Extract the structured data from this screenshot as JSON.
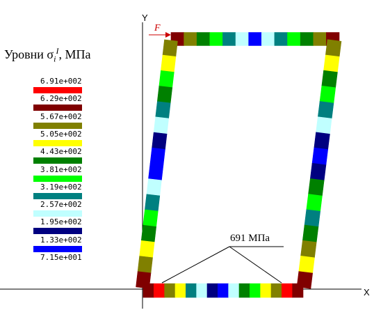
{
  "legend": {
    "title_prefix": "Уровни σ",
    "title_sub": "i",
    "title_sup": "I",
    "title_suffix": ", МПа",
    "levels": [
      {
        "label": "6.91e+002",
        "color": "#ff0000"
      },
      {
        "label": "6.29e+002",
        "color": "#800000"
      },
      {
        "label": "5.67e+002",
        "color": "#808000"
      },
      {
        "label": "5.05e+002",
        "color": "#ffff00"
      },
      {
        "label": "4.43e+002",
        "color": "#008000"
      },
      {
        "label": "3.81e+002",
        "color": "#00ff00"
      },
      {
        "label": "3.19e+002",
        "color": "#008080"
      },
      {
        "label": "2.57e+002",
        "color": "#c0ffff"
      },
      {
        "label": "1.95e+002",
        "color": "#000080"
      },
      {
        "label": "1.33e+002",
        "color": "#0000ff"
      },
      {
        "label": "7.15e+001",
        "color": null
      }
    ]
  },
  "axes": {
    "y_label": "Y",
    "x_label": "X"
  },
  "force_label": "F",
  "annotation": {
    "text": "691 МПа"
  },
  "members": {
    "top": [
      "#800000",
      "#808000",
      "#008000",
      "#00ff00",
      "#008080",
      "#c0ffff",
      "#0000ff",
      "#c0ffff",
      "#008080",
      "#00ff00",
      "#008000",
      "#808000",
      "#800000"
    ],
    "left": [
      "#808000",
      "#ffff00",
      "#00ff00",
      "#008000",
      "#008080",
      "#c0ffff",
      "#000080",
      "#0000ff",
      "#0000ff",
      "#c0ffff",
      "#008080",
      "#00ff00",
      "#008000",
      "#ffff00",
      "#808000",
      "#800000"
    ],
    "right": [
      "#808000",
      "#ffff00",
      "#008000",
      "#00ff00",
      "#008080",
      "#c0ffff",
      "#000080",
      "#0000ff",
      "#000080",
      "#008000",
      "#00ff00",
      "#008080",
      "#008000",
      "#808000",
      "#ffff00",
      "#800000"
    ],
    "bottom": [
      "#800000",
      "#ff0000",
      "#808000",
      "#ffff00",
      "#008080",
      "#c0ffff",
      "#000080",
      "#0000ff",
      "#c0ffff",
      "#008000",
      "#00ff00",
      "#ffff00",
      "#808000",
      "#ff0000",
      "#800000"
    ]
  }
}
